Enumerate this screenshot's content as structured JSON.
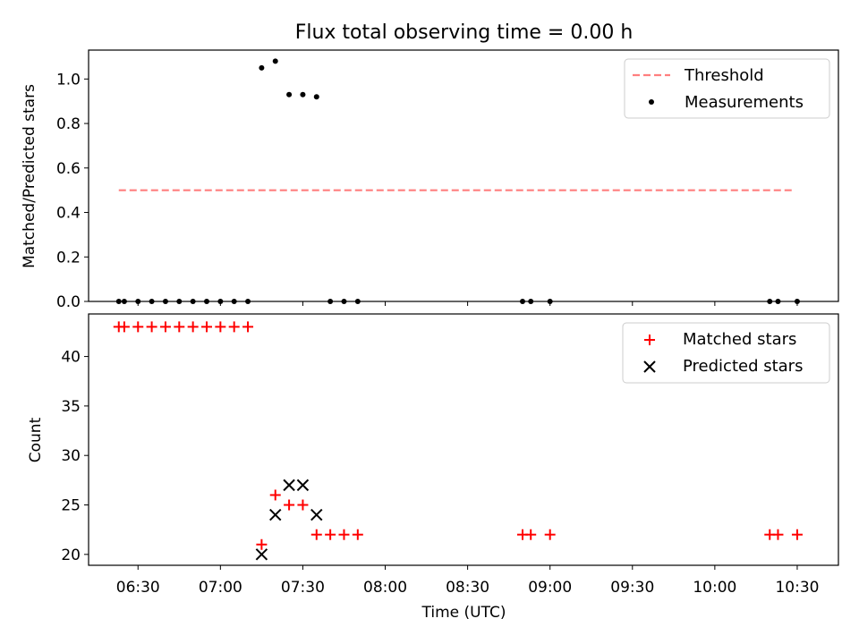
{
  "chart_data": [
    {
      "type": "scatter",
      "title": "Flux total observing time = 0.00 h",
      "xlabel": "",
      "ylabel": "Matched/Predicted stars",
      "ylim": [
        0,
        1.13
      ],
      "yticks": [
        0.0,
        0.2,
        0.4,
        0.6,
        0.8,
        1.0
      ],
      "ytick_labels": [
        "0.0",
        "0.2",
        "0.4",
        "0.6",
        "0.8",
        "1.0"
      ],
      "legend_position": "top-right",
      "threshold": {
        "name": "Threshold",
        "value": 0.5,
        "x_start": "06:23",
        "x_end": "10:29",
        "color": "#ff7f7f"
      },
      "series": [
        {
          "name": "Measurements",
          "color": "#000000",
          "marker": "dot",
          "x": [
            "06:23",
            "06:25",
            "06:30",
            "06:35",
            "06:40",
            "06:45",
            "06:50",
            "06:55",
            "07:00",
            "07:05",
            "07:10",
            "07:15",
            "07:20",
            "07:25",
            "07:30",
            "07:35",
            "07:40",
            "07:45",
            "07:50",
            "08:50",
            "08:53",
            "09:00",
            "10:20",
            "10:23",
            "10:30"
          ],
          "y": [
            0,
            0,
            0,
            0,
            0,
            0,
            0,
            0,
            0,
            0,
            0,
            1.05,
            1.08,
            0.93,
            0.93,
            0.92,
            0,
            0,
            0,
            0,
            0,
            0,
            0,
            0,
            0
          ]
        }
      ]
    },
    {
      "type": "scatter",
      "title": "",
      "xlabel": "Time (UTC)",
      "ylabel": "Count",
      "ylim": [
        18.9,
        44.3
      ],
      "yticks": [
        20,
        25,
        30,
        35,
        40
      ],
      "ytick_labels": [
        "20",
        "25",
        "30",
        "35",
        "40"
      ],
      "xlim": [
        "06:12",
        "10:45"
      ],
      "xticks": [
        "06:30",
        "07:00",
        "07:30",
        "08:00",
        "08:30",
        "09:00",
        "09:30",
        "10:00",
        "10:30"
      ],
      "xtick_labels": [
        "06:30",
        "07:00",
        "07:30",
        "08:00",
        "08:30",
        "09:00",
        "09:30",
        "10:00",
        "10:30"
      ],
      "legend_position": "top-right",
      "series": [
        {
          "name": "Matched stars",
          "color": "#ff0000",
          "marker": "plus",
          "x": [
            "06:23",
            "06:25",
            "06:30",
            "06:35",
            "06:40",
            "06:45",
            "06:50",
            "06:55",
            "07:00",
            "07:05",
            "07:10",
            "07:15",
            "07:20",
            "07:25",
            "07:30",
            "07:35",
            "07:40",
            "07:45",
            "07:50",
            "08:50",
            "08:53",
            "09:00",
            "10:20",
            "10:23",
            "10:30"
          ],
          "y": [
            43,
            43,
            43,
            43,
            43,
            43,
            43,
            43,
            43,
            43,
            43,
            21,
            26,
            25,
            25,
            22,
            22,
            22,
            22,
            22,
            22,
            22,
            22,
            22,
            22
          ]
        },
        {
          "name": "Predicted stars",
          "color": "#000000",
          "marker": "x",
          "x": [
            "07:15",
            "07:20",
            "07:25",
            "07:30",
            "07:35"
          ],
          "y": [
            20,
            24,
            27,
            27,
            24
          ]
        }
      ]
    }
  ]
}
